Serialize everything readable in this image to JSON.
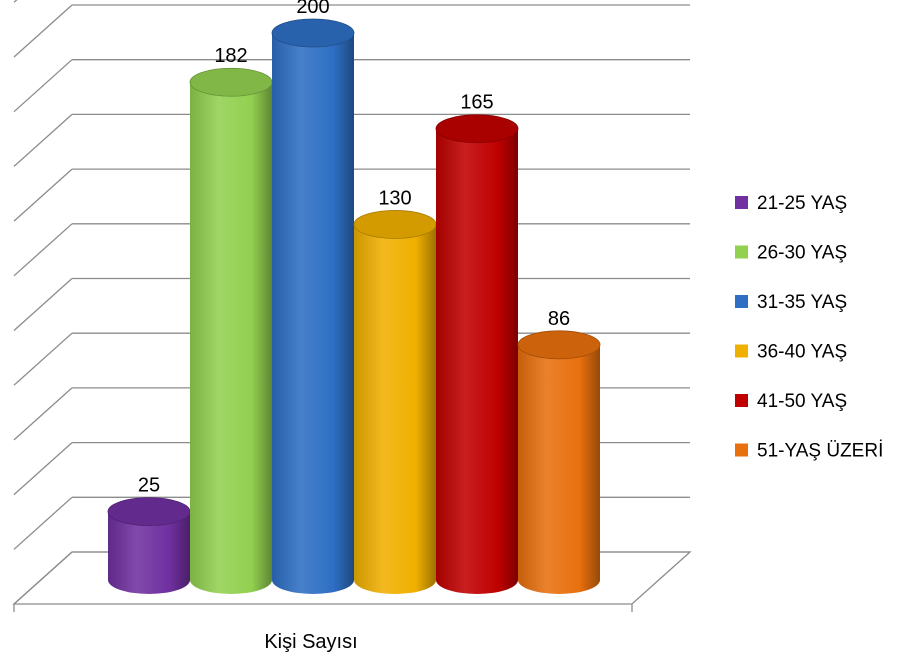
{
  "chart_data": {
    "type": "bar",
    "style": "3d-cylinder",
    "xlabel": "Kişi Sayısı",
    "ylabel": "",
    "ylim": [
      0,
      220
    ],
    "grid": true,
    "legend_position": "right",
    "series": [
      {
        "name": "21-25 YAŞ",
        "value": 25,
        "color": "#7030A0"
      },
      {
        "name": "26-30 YAŞ",
        "value": 182,
        "color": "#92D050"
      },
      {
        "name": "31-35 YAŞ",
        "value": 200,
        "color": "#2E6FC4"
      },
      {
        "name": "36-40 YAŞ",
        "value": 130,
        "color": "#F0B000"
      },
      {
        "name": "41-50 YAŞ",
        "value": 165,
        "color": "#C00000"
      },
      {
        "name": "51-YAŞ ÜZERİ",
        "value": 86,
        "color": "#E8700E"
      }
    ]
  }
}
